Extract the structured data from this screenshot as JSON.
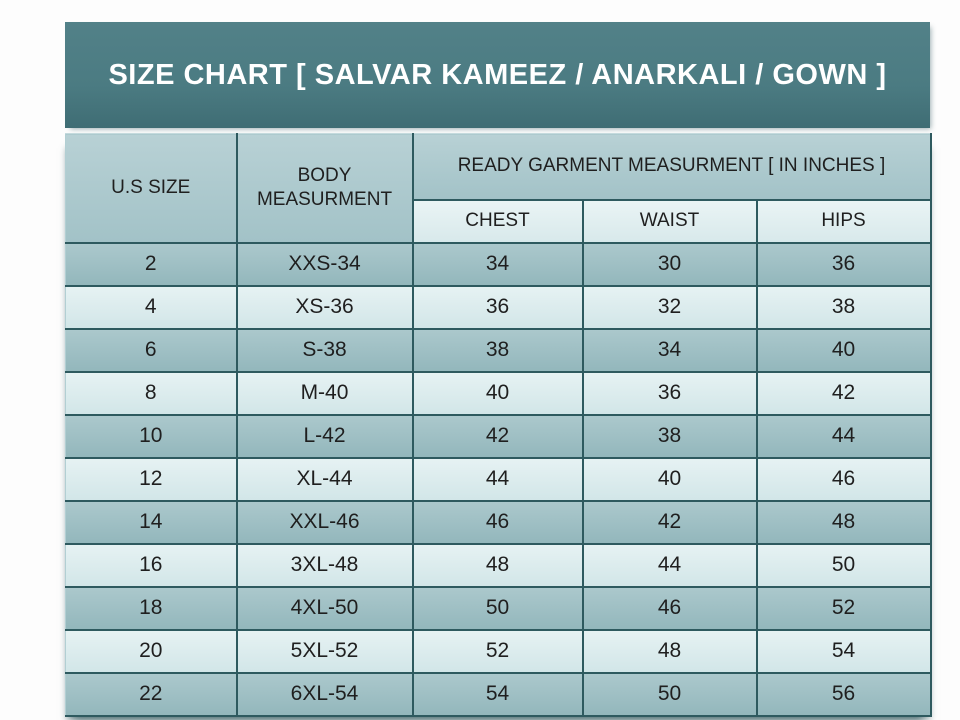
{
  "title": {
    "text": "SIZE CHART [ SALVAR KAMEEZ / ANARKALI / GOWN ]"
  },
  "table": {
    "header": {
      "us_size": "U.S SIZE",
      "body_measurement": "BODY MEASURMENT",
      "ready_garment": "READY GARMENT MEASURMENT [ IN INCHES ]",
      "sub_columns": [
        "CHEST",
        "WAIST",
        "HIPS"
      ]
    }
  },
  "colors": {
    "title_band_bg": "#4b7b82",
    "title_text": "#ffffff",
    "header_cell_bg": "#acc9cd",
    "sub_header_cell_bg": "#e2eff0",
    "row_dark_bg": "#9dbfc4",
    "row_light_bg": "#dcebec",
    "border": "#2e5a5f",
    "cell_text": "#1f1f1f",
    "page_bg": "#fdfdfd"
  },
  "chart_data": {
    "type": "table",
    "title": "SIZE CHART [ SALVAR KAMEEZ / ANARKALI / GOWN ]",
    "columns": [
      "U.S SIZE",
      "BODY MEASURMENT",
      "CHEST",
      "WAIST",
      "HIPS"
    ],
    "column_keys": [
      "us-size",
      "body-measurement",
      "chest",
      "waist",
      "hips"
    ],
    "column_group": {
      "label": "READY GARMENT MEASURMENT [ IN INCHES ]",
      "spans": [
        "CHEST",
        "WAIST",
        "HIPS"
      ]
    },
    "rows": [
      [
        "2",
        "XXS-34",
        "34",
        "30",
        "36"
      ],
      [
        "4",
        "XS-36",
        "36",
        "32",
        "38"
      ],
      [
        "6",
        "S-38",
        "38",
        "34",
        "40"
      ],
      [
        "8",
        "M-40",
        "40",
        "36",
        "42"
      ],
      [
        "10",
        "L-42",
        "42",
        "38",
        "44"
      ],
      [
        "12",
        "XL-44",
        "44",
        "40",
        "46"
      ],
      [
        "14",
        "XXL-46",
        "46",
        "42",
        "48"
      ],
      [
        "16",
        "3XL-48",
        "48",
        "44",
        "50"
      ],
      [
        "18",
        "4XL-50",
        "50",
        "46",
        "52"
      ],
      [
        "20",
        "5XL-52",
        "52",
        "48",
        "54"
      ],
      [
        "22",
        "6XL-54",
        "54",
        "50",
        "56"
      ]
    ]
  }
}
